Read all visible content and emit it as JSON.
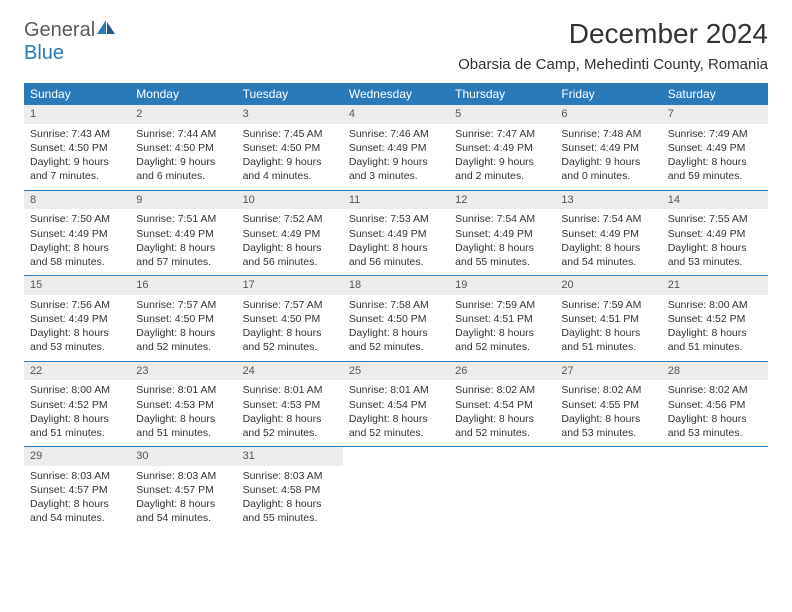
{
  "logo": {
    "general": "General",
    "blue": "Blue"
  },
  "title": "December 2024",
  "location": "Obarsia de Camp, Mehedinti County, Romania",
  "colors": {
    "header_bg": "#2a7ab9",
    "daynum_bg": "#ececec",
    "text": "#333333",
    "logo_gray": "#5a5a5a",
    "logo_blue": "#2a7ab9"
  },
  "day_headers": [
    "Sunday",
    "Monday",
    "Tuesday",
    "Wednesday",
    "Thursday",
    "Friday",
    "Saturday"
  ],
  "weeks": [
    [
      {
        "n": "1",
        "sr": "Sunrise: 7:43 AM",
        "ss": "Sunset: 4:50 PM",
        "dl": "Daylight: 9 hours and 7 minutes."
      },
      {
        "n": "2",
        "sr": "Sunrise: 7:44 AM",
        "ss": "Sunset: 4:50 PM",
        "dl": "Daylight: 9 hours and 6 minutes."
      },
      {
        "n": "3",
        "sr": "Sunrise: 7:45 AM",
        "ss": "Sunset: 4:50 PM",
        "dl": "Daylight: 9 hours and 4 minutes."
      },
      {
        "n": "4",
        "sr": "Sunrise: 7:46 AM",
        "ss": "Sunset: 4:49 PM",
        "dl": "Daylight: 9 hours and 3 minutes."
      },
      {
        "n": "5",
        "sr": "Sunrise: 7:47 AM",
        "ss": "Sunset: 4:49 PM",
        "dl": "Daylight: 9 hours and 2 minutes."
      },
      {
        "n": "6",
        "sr": "Sunrise: 7:48 AM",
        "ss": "Sunset: 4:49 PM",
        "dl": "Daylight: 9 hours and 0 minutes."
      },
      {
        "n": "7",
        "sr": "Sunrise: 7:49 AM",
        "ss": "Sunset: 4:49 PM",
        "dl": "Daylight: 8 hours and 59 minutes."
      }
    ],
    [
      {
        "n": "8",
        "sr": "Sunrise: 7:50 AM",
        "ss": "Sunset: 4:49 PM",
        "dl": "Daylight: 8 hours and 58 minutes."
      },
      {
        "n": "9",
        "sr": "Sunrise: 7:51 AM",
        "ss": "Sunset: 4:49 PM",
        "dl": "Daylight: 8 hours and 57 minutes."
      },
      {
        "n": "10",
        "sr": "Sunrise: 7:52 AM",
        "ss": "Sunset: 4:49 PM",
        "dl": "Daylight: 8 hours and 56 minutes."
      },
      {
        "n": "11",
        "sr": "Sunrise: 7:53 AM",
        "ss": "Sunset: 4:49 PM",
        "dl": "Daylight: 8 hours and 56 minutes."
      },
      {
        "n": "12",
        "sr": "Sunrise: 7:54 AM",
        "ss": "Sunset: 4:49 PM",
        "dl": "Daylight: 8 hours and 55 minutes."
      },
      {
        "n": "13",
        "sr": "Sunrise: 7:54 AM",
        "ss": "Sunset: 4:49 PM",
        "dl": "Daylight: 8 hours and 54 minutes."
      },
      {
        "n": "14",
        "sr": "Sunrise: 7:55 AM",
        "ss": "Sunset: 4:49 PM",
        "dl": "Daylight: 8 hours and 53 minutes."
      }
    ],
    [
      {
        "n": "15",
        "sr": "Sunrise: 7:56 AM",
        "ss": "Sunset: 4:49 PM",
        "dl": "Daylight: 8 hours and 53 minutes."
      },
      {
        "n": "16",
        "sr": "Sunrise: 7:57 AM",
        "ss": "Sunset: 4:50 PM",
        "dl": "Daylight: 8 hours and 52 minutes."
      },
      {
        "n": "17",
        "sr": "Sunrise: 7:57 AM",
        "ss": "Sunset: 4:50 PM",
        "dl": "Daylight: 8 hours and 52 minutes."
      },
      {
        "n": "18",
        "sr": "Sunrise: 7:58 AM",
        "ss": "Sunset: 4:50 PM",
        "dl": "Daylight: 8 hours and 52 minutes."
      },
      {
        "n": "19",
        "sr": "Sunrise: 7:59 AM",
        "ss": "Sunset: 4:51 PM",
        "dl": "Daylight: 8 hours and 52 minutes."
      },
      {
        "n": "20",
        "sr": "Sunrise: 7:59 AM",
        "ss": "Sunset: 4:51 PM",
        "dl": "Daylight: 8 hours and 51 minutes."
      },
      {
        "n": "21",
        "sr": "Sunrise: 8:00 AM",
        "ss": "Sunset: 4:52 PM",
        "dl": "Daylight: 8 hours and 51 minutes."
      }
    ],
    [
      {
        "n": "22",
        "sr": "Sunrise: 8:00 AM",
        "ss": "Sunset: 4:52 PM",
        "dl": "Daylight: 8 hours and 51 minutes."
      },
      {
        "n": "23",
        "sr": "Sunrise: 8:01 AM",
        "ss": "Sunset: 4:53 PM",
        "dl": "Daylight: 8 hours and 51 minutes."
      },
      {
        "n": "24",
        "sr": "Sunrise: 8:01 AM",
        "ss": "Sunset: 4:53 PM",
        "dl": "Daylight: 8 hours and 52 minutes."
      },
      {
        "n": "25",
        "sr": "Sunrise: 8:01 AM",
        "ss": "Sunset: 4:54 PM",
        "dl": "Daylight: 8 hours and 52 minutes."
      },
      {
        "n": "26",
        "sr": "Sunrise: 8:02 AM",
        "ss": "Sunset: 4:54 PM",
        "dl": "Daylight: 8 hours and 52 minutes."
      },
      {
        "n": "27",
        "sr": "Sunrise: 8:02 AM",
        "ss": "Sunset: 4:55 PM",
        "dl": "Daylight: 8 hours and 53 minutes."
      },
      {
        "n": "28",
        "sr": "Sunrise: 8:02 AM",
        "ss": "Sunset: 4:56 PM",
        "dl": "Daylight: 8 hours and 53 minutes."
      }
    ],
    [
      {
        "n": "29",
        "sr": "Sunrise: 8:03 AM",
        "ss": "Sunset: 4:57 PM",
        "dl": "Daylight: 8 hours and 54 minutes."
      },
      {
        "n": "30",
        "sr": "Sunrise: 8:03 AM",
        "ss": "Sunset: 4:57 PM",
        "dl": "Daylight: 8 hours and 54 minutes."
      },
      {
        "n": "31",
        "sr": "Sunrise: 8:03 AM",
        "ss": "Sunset: 4:58 PM",
        "dl": "Daylight: 8 hours and 55 minutes."
      },
      null,
      null,
      null,
      null
    ]
  ]
}
